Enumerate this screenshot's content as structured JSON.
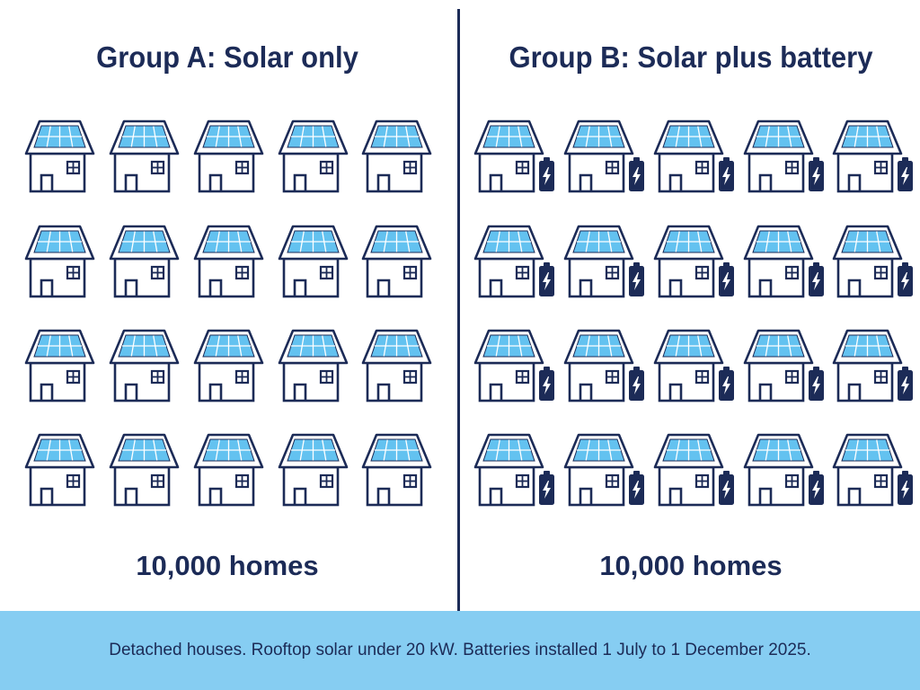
{
  "groups": [
    {
      "id": "A",
      "title": "Group A: Solar only",
      "count_label": "10,000 homes",
      "has_battery": false
    },
    {
      "id": "B",
      "title": "Group B: Solar plus battery",
      "count_label": "10,000 homes",
      "has_battery": true
    }
  ],
  "footer": {
    "note": "Detached houses. Rooftop solar under 20 kW. Batteries installed 1 July to 1 December 2025."
  },
  "colors": {
    "outline": "#1c2b57",
    "panel": "#63c2f0",
    "footer_background": "#86cdf2"
  },
  "icons": [
    "solar-house-icon",
    "battery-icon"
  ]
}
